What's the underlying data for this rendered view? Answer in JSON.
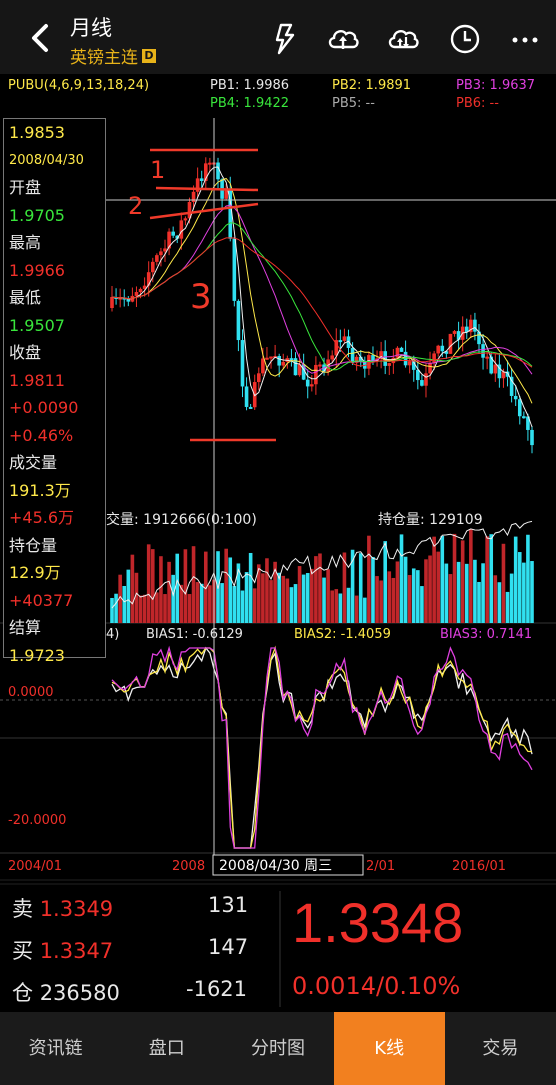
{
  "header": {
    "title": "月线",
    "subtitle": "英镑主连",
    "badge": "D",
    "icons": [
      "lightning-icon",
      "cloud-upload-icon",
      "cloud-sync-icon",
      "clock-icon",
      "more-icon"
    ]
  },
  "indicators": {
    "pubu_label": "PUBU(4,6,9,13,18,24)",
    "pb1": "PB1: 1.9986",
    "pb2": "PB2: 1.9891",
    "pb3": "PB3: 1.9637",
    "pb4": "PB4: 1.9422",
    "pb5": "PB5: --",
    "pb6": "PB6: --"
  },
  "info": {
    "price": "1.9853",
    "date": "2008/04/30",
    "open_label": "开盘",
    "open": "1.9705",
    "high_label": "最高",
    "high": "1.9966",
    "low_label": "最低",
    "low": "1.9507",
    "close_label": "收盘",
    "close": "1.9811",
    "change": "+0.0090",
    "change_pct": "+0.46%",
    "volume_label": "成交量",
    "volume": "191.3万",
    "volume_change": "+45.6万",
    "oi_label": "持仓量",
    "oi": "12.9万",
    "oi_change": "+40377",
    "settle_label": "结算",
    "settle": "1.9723"
  },
  "volume_panel": {
    "vol_text": "交量: 1912666(0:100)",
    "oi_text": "持仓量: 129109"
  },
  "bias_panel": {
    "prefix": "4)",
    "bias1": "BIAS1: -0.6129",
    "bias2": "BIAS2: -1.4059",
    "bias3": "BIAS3: 0.7141",
    "axis_top": "0.0000",
    "axis_bottom": "-20.0000"
  },
  "time_axis": {
    "labels": [
      "2004/01",
      "2008",
      "2/01",
      "2016/01"
    ],
    "cursor_label": "2008/04/30 周三"
  },
  "annotations": [
    "1",
    "2",
    "3"
  ],
  "quote": {
    "sell_label": "卖",
    "sell_price": "1.3349",
    "sell_qty": "131",
    "buy_label": "买",
    "buy_price": "1.3347",
    "buy_qty": "147",
    "oi_label": "仓",
    "oi_value": "236580",
    "oi_change": "-1621",
    "last_price": "1.3348",
    "change": "0.0014/0.10%"
  },
  "tabs": [
    "资讯链",
    "盘口",
    "分时图",
    "K线",
    "交易"
  ],
  "active_tab": "K线",
  "colors": {
    "up": "#f0302a",
    "down": "#30e0f0",
    "accent": "#f2801f",
    "yellow": "#ffe94a",
    "green": "#39e63c",
    "magenta": "#e040e0"
  }
}
